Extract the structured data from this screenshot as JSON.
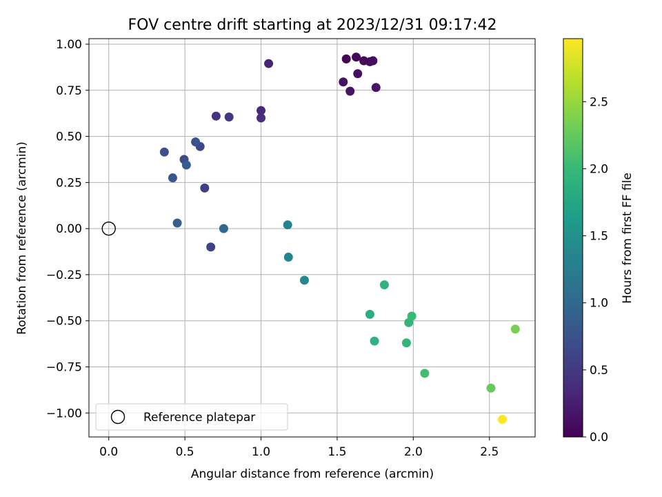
{
  "chart_data": {
    "type": "scatter",
    "title": "FOV centre drift starting at 2023/12/31 09:17:42",
    "xlabel": "Angular distance from reference (arcmin)",
    "ylabel": "Rotation from reference (arcmin)",
    "xlim": [
      -0.13,
      2.8
    ],
    "ylim": [
      -1.13,
      1.03
    ],
    "xticks": [
      0.0,
      0.5,
      1.0,
      1.5,
      2.0,
      2.5
    ],
    "xtick_labels": [
      "0.0",
      "0.5",
      "1.0",
      "1.5",
      "2.0",
      "2.5"
    ],
    "yticks": [
      1.0,
      0.75,
      0.5,
      0.25,
      0.0,
      -0.25,
      -0.5,
      -0.75,
      -1.0
    ],
    "ytick_labels": [
      "1.00",
      "0.75",
      "0.50",
      "0.25",
      "0.00",
      "−0.25",
      "−0.50",
      "−0.75",
      "−1.00"
    ],
    "grid": true,
    "legend": {
      "placement": "lower-left",
      "entries": [
        "Reference platepar"
      ]
    },
    "reference_point": {
      "x": 0.0,
      "y": 0.0
    },
    "colorbar": {
      "label": "Hours from first FF file",
      "colormap": "viridis",
      "range": [
        0.0,
        2.97
      ],
      "ticks": [
        0.0,
        0.5,
        1.0,
        1.5,
        2.0,
        2.5
      ],
      "tick_labels": [
        "0.0",
        "0.5",
        "1.0",
        "1.5",
        "2.0",
        "2.5"
      ]
    },
    "points": [
      {
        "x": 1.56,
        "y": 0.92,
        "h": 0.02
      },
      {
        "x": 1.625,
        "y": 0.93,
        "h": 0.04
      },
      {
        "x": 1.675,
        "y": 0.91,
        "h": 0.06
      },
      {
        "x": 1.715,
        "y": 0.905,
        "h": 0.08
      },
      {
        "x": 1.735,
        "y": 0.91,
        "h": 0.1
      },
      {
        "x": 1.635,
        "y": 0.84,
        "h": 0.12
      },
      {
        "x": 1.54,
        "y": 0.795,
        "h": 0.14
      },
      {
        "x": 1.585,
        "y": 0.745,
        "h": 0.16
      },
      {
        "x": 1.755,
        "y": 0.765,
        "h": 0.18
      },
      {
        "x": 1.05,
        "y": 0.895,
        "h": 0.3
      },
      {
        "x": 1.0,
        "y": 0.64,
        "h": 0.35
      },
      {
        "x": 1.0,
        "y": 0.6,
        "h": 0.4
      },
      {
        "x": 0.705,
        "y": 0.61,
        "h": 0.45
      },
      {
        "x": 0.79,
        "y": 0.605,
        "h": 0.5
      },
      {
        "x": 0.63,
        "y": 0.22,
        "h": 0.55
      },
      {
        "x": 0.67,
        "y": -0.1,
        "h": 0.6
      },
      {
        "x": 0.6,
        "y": 0.445,
        "h": 0.65
      },
      {
        "x": 0.495,
        "y": 0.375,
        "h": 0.68
      },
      {
        "x": 0.365,
        "y": 0.415,
        "h": 0.72
      },
      {
        "x": 0.57,
        "y": 0.47,
        "h": 0.75
      },
      {
        "x": 0.42,
        "y": 0.275,
        "h": 0.8
      },
      {
        "x": 0.51,
        "y": 0.345,
        "h": 0.85
      },
      {
        "x": 0.45,
        "y": 0.03,
        "h": 0.9
      },
      {
        "x": 0.755,
        "y": 0.0,
        "h": 1.0
      },
      {
        "x": 1.175,
        "y": 0.02,
        "h": 1.3
      },
      {
        "x": 1.18,
        "y": -0.155,
        "h": 1.35
      },
      {
        "x": 1.285,
        "y": -0.28,
        "h": 1.4
      },
      {
        "x": 1.715,
        "y": -0.465,
        "h": 1.85
      },
      {
        "x": 1.81,
        "y": -0.305,
        "h": 1.9
      },
      {
        "x": 1.745,
        "y": -0.61,
        "h": 1.9
      },
      {
        "x": 1.955,
        "y": -0.62,
        "h": 1.95
      },
      {
        "x": 1.97,
        "y": -0.51,
        "h": 1.95
      },
      {
        "x": 1.99,
        "y": -0.475,
        "h": 2.0
      },
      {
        "x": 2.075,
        "y": -0.785,
        "h": 2.05
      },
      {
        "x": 2.51,
        "y": -0.865,
        "h": 2.25
      },
      {
        "x": 2.67,
        "y": -0.545,
        "h": 2.35
      },
      {
        "x": 2.585,
        "y": -1.035,
        "h": 2.97
      }
    ]
  }
}
